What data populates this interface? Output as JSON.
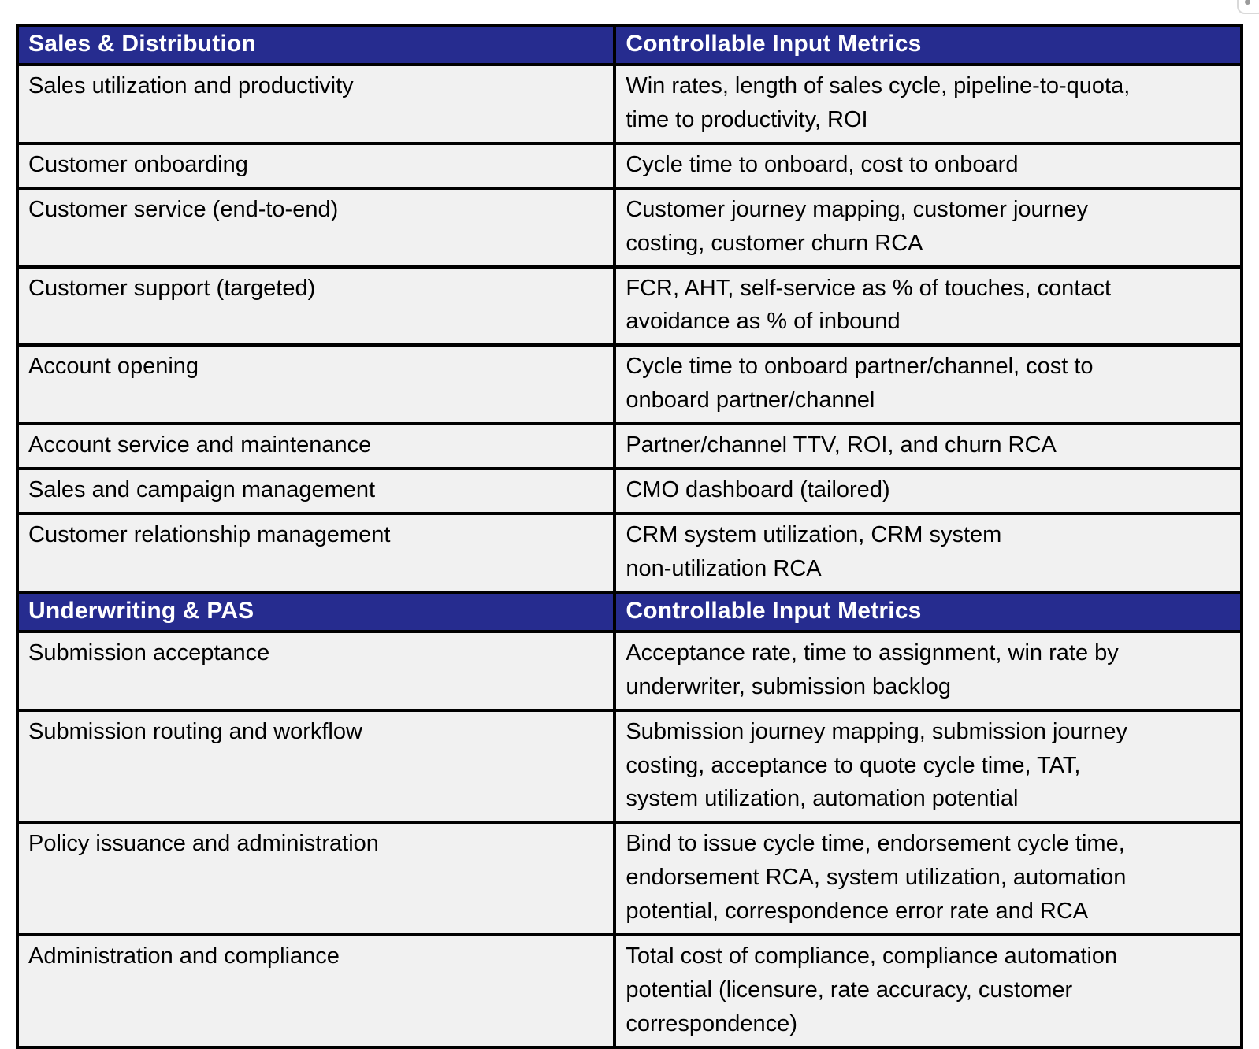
{
  "theme": {
    "header_bg": "#262c8f",
    "header_text": "#ffffff",
    "row_bg": "#f1f1f1",
    "row_text": "#000000",
    "border_color": "#000000",
    "page_bg": "#ffffff"
  },
  "table": {
    "sections": [
      {
        "header": {
          "left": "Sales & Distribution",
          "right": "Controllable Input Metrics"
        },
        "rows": [
          {
            "process": "Sales utilization and productivity",
            "metrics": "Win rates, length of sales cycle, pipeline-to-quota,\ntime to productivity, ROI"
          },
          {
            "process": "Customer onboarding",
            "metrics": "Cycle time to onboard, cost to onboard"
          },
          {
            "process": "Customer service (end-to-end)",
            "metrics": "Customer journey mapping, customer journey\ncosting, customer churn RCA"
          },
          {
            "process": "Customer support (targeted)",
            "metrics": "FCR, AHT, self-service as % of touches, contact\navoidance as % of inbound"
          },
          {
            "process": "Account opening",
            "metrics": "Cycle time to onboard partner/channel, cost to\nonboard partner/channel"
          },
          {
            "process": "Account service and maintenance",
            "metrics": "Partner/channel TTV, ROI, and churn RCA"
          },
          {
            "process": "Sales and campaign management",
            "metrics": "CMO dashboard (tailored)"
          },
          {
            "process": "Customer relationship management",
            "metrics": "CRM system utilization, CRM system\nnon-utilization RCA"
          }
        ]
      },
      {
        "header": {
          "left": "Underwriting & PAS",
          "right": "Controllable Input Metrics"
        },
        "rows": [
          {
            "process": "Submission acceptance",
            "metrics": "Acceptance rate, time to assignment, win rate by\nunderwriter, submission backlog"
          },
          {
            "process": "Submission routing and workflow",
            "metrics": "Submission journey mapping, submission journey\ncosting, acceptance to quote cycle time, TAT,\nsystem utilization, automation potential"
          },
          {
            "process": "Policy issuance and administration",
            "metrics": "Bind to issue cycle time, endorsement cycle time,\nendorsement RCA, system utilization, automation\npotential, correspondence error rate and RCA"
          },
          {
            "process": "Administration and compliance",
            "metrics": "Total cost of compliance, compliance automation\npotential (licensure, rate accuracy, customer\ncorrespondence)"
          }
        ]
      }
    ]
  }
}
